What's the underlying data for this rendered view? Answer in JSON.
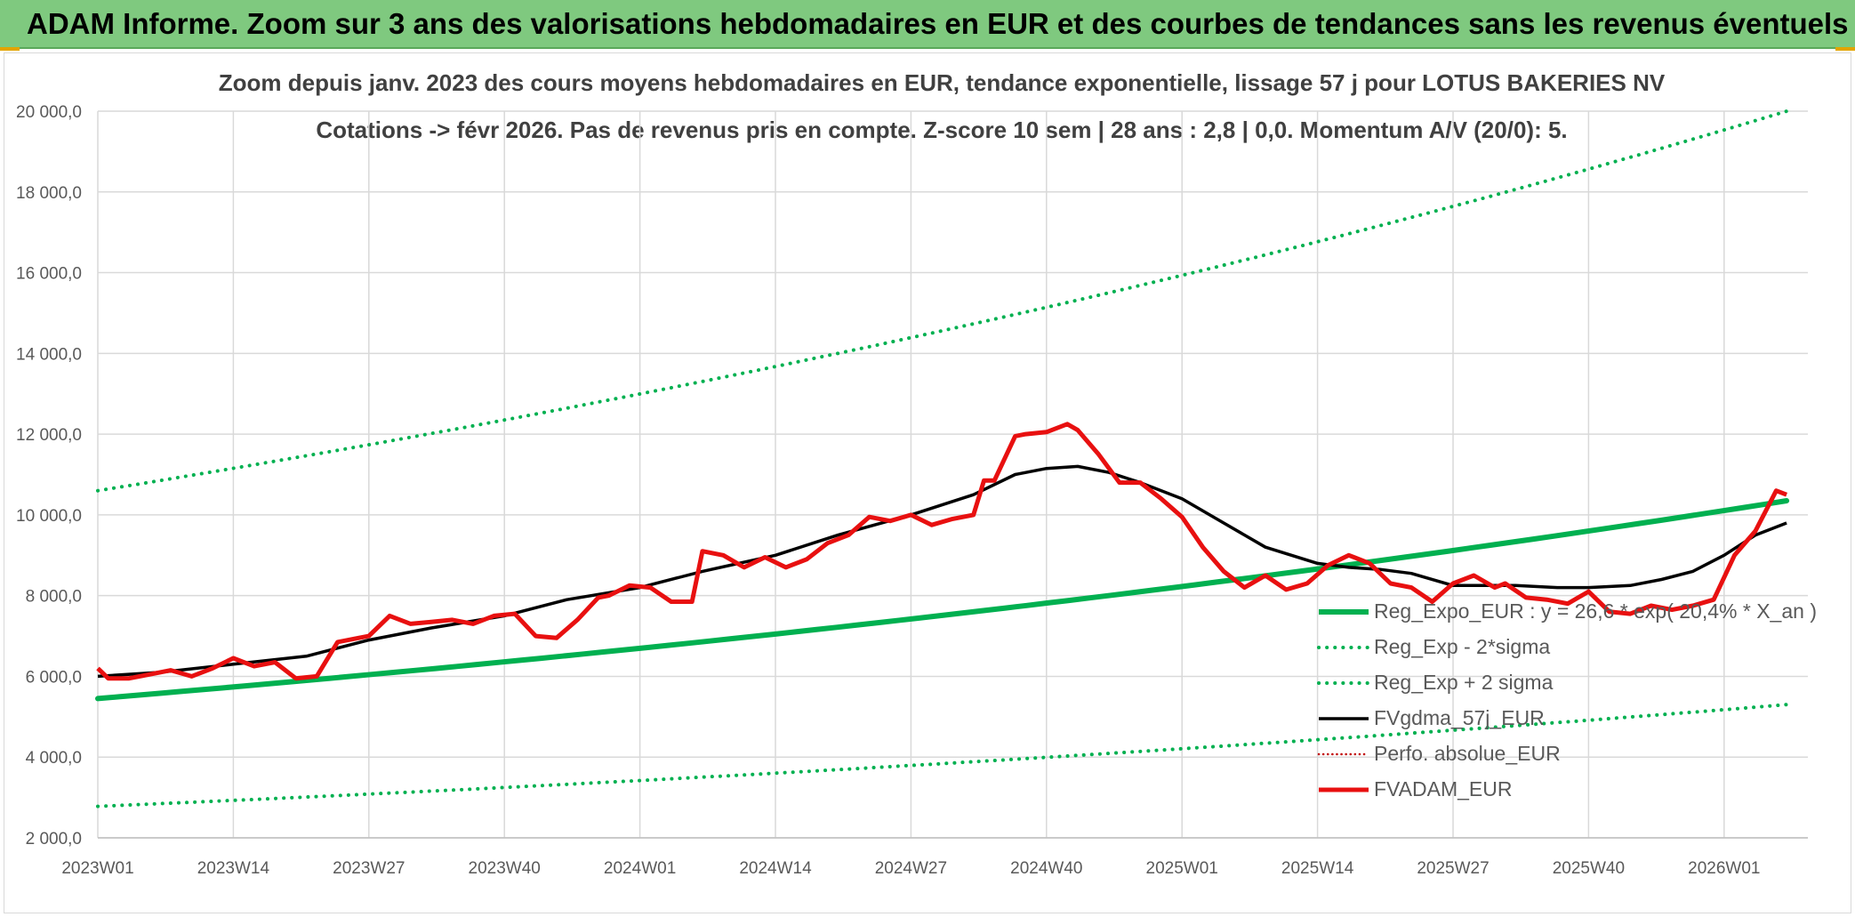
{
  "banner": {
    "title": "ADAM Informe. Zoom sur 3 ans des valorisations hebdomadaires en EUR et des courbes de tendances sans les revenus éventuels"
  },
  "colors": {
    "banner_bg": "#7fc97f",
    "trend_green": "#00b050",
    "band_green": "#00b050",
    "fvgdma_black": "#000000",
    "perfo_red": "#c00000",
    "fvadam_red": "#e81010"
  },
  "chart_data": {
    "type": "line",
    "title_line1": "Zoom depuis janv. 2023 des cours moyens hebdomadaires en EUR, tendance exponentielle, lissage 57 j pour LOTUS BAKERIES NV",
    "title_line2": "Cotations -> févr 2026. Pas de revenus pris en compte. Z-score 10 sem | 28 ans : 2,8 | 0,0. Momentum A/V (20/0): 5.",
    "ylim": [
      2000,
      20000
    ],
    "y_ticks": [
      2000,
      4000,
      6000,
      8000,
      10000,
      12000,
      14000,
      16000,
      18000,
      20000
    ],
    "y_tick_labels": [
      "2 000,0",
      "4 000,0",
      "6 000,0",
      "8 000,0",
      "10 000,0",
      "12 000,0",
      "14 000,0",
      "16 000,0",
      "18 000,0",
      "20 000,0"
    ],
    "x_range_weeks": [
      0,
      125
    ],
    "x_ticks": [
      0,
      13,
      26,
      39,
      52,
      65,
      78,
      91,
      104,
      117,
      130,
      143,
      156
    ],
    "x_tick_labels": [
      "2023W01",
      "2023W14",
      "2023W27",
      "2023W40",
      "2024W01",
      "2024W14",
      "2024W27",
      "2024W40",
      "2025W01",
      "2025W14",
      "2025W27",
      "2025W40",
      "2026W01"
    ],
    "legend": [
      "Reg_Expo_EUR : y = 26,6 * exp( 20,4% *  X_an )",
      "Reg_Exp - 2*sigma",
      "Reg_Exp + 2 sigma",
      "FVgdma_57j_EUR",
      "Perfo. absolue_EUR",
      "FVADAM_EUR"
    ],
    "series": [
      {
        "name": "Reg_Expo_EUR",
        "style": "solid-thick",
        "x": [
          0,
          162
        ],
        "y": [
          5450,
          10350
        ],
        "shape": "exp"
      },
      {
        "name": "Reg_Exp - 2*sigma",
        "style": "dotted",
        "x": [
          0,
          162
        ],
        "y": [
          2780,
          5300
        ],
        "shape": "exp"
      },
      {
        "name": "Reg_Exp + 2 sigma",
        "style": "dotted",
        "x": [
          0,
          162
        ],
        "y": [
          10600,
          20000
        ],
        "shape": "exp"
      },
      {
        "name": "FVgdma_57j_EUR",
        "style": "solid",
        "x": [
          0,
          6,
          13,
          20,
          26,
          32,
          39,
          45,
          52,
          58,
          65,
          71,
          78,
          84,
          88,
          91,
          94,
          97,
          100,
          104,
          108,
          112,
          117,
          120,
          123,
          126,
          130,
          133,
          136,
          140,
          143,
          147,
          150,
          153,
          156,
          159,
          162
        ],
        "y": [
          6000,
          6100,
          6300,
          6500,
          6900,
          7200,
          7500,
          7900,
          8200,
          8600,
          9000,
          9500,
          10000,
          10500,
          11000,
          11150,
          11200,
          11050,
          10800,
          10400,
          9800,
          9200,
          8800,
          8700,
          8650,
          8550,
          8250,
          8250,
          8250,
          8200,
          8200,
          8250,
          8400,
          8600,
          9000,
          9500,
          9800
        ]
      },
      {
        "name": "FVADAM_EUR",
        "style": "solid-thick",
        "x": [
          0,
          1,
          3,
          5,
          7,
          9,
          11,
          13,
          15,
          17,
          19,
          21,
          23,
          25,
          26,
          28,
          30,
          32,
          34,
          36,
          38,
          40,
          42,
          44,
          46,
          48,
          49,
          51,
          53,
          55,
          57,
          58,
          60,
          62,
          64,
          66,
          68,
          70,
          72,
          74,
          76,
          78,
          80,
          82,
          84,
          85,
          86,
          88,
          89,
          91,
          93,
          94,
          96,
          98,
          100,
          102,
          104,
          106,
          108,
          110,
          112,
          114,
          116,
          118,
          120,
          122,
          124,
          126,
          128,
          130,
          132,
          134,
          135,
          137,
          139,
          141,
          143,
          145,
          147,
          149,
          151,
          153,
          155,
          157,
          159,
          161,
          162
        ],
        "y": [
          6200,
          5950,
          5950,
          6050,
          6150,
          6000,
          6200,
          6450,
          6250,
          6350,
          5950,
          6000,
          6850,
          6950,
          7000,
          7500,
          7300,
          7350,
          7400,
          7300,
          7500,
          7550,
          7000,
          6950,
          7400,
          7950,
          8000,
          8250,
          8200,
          7850,
          7850,
          9100,
          9000,
          8700,
          8950,
          8700,
          8900,
          9300,
          9500,
          9950,
          9850,
          10000,
          9750,
          9900,
          10000,
          10850,
          10850,
          11950,
          12000,
          12050,
          12250,
          12100,
          11500,
          10800,
          10800,
          10400,
          9950,
          9200,
          8600,
          8200,
          8500,
          8150,
          8300,
          8750,
          9000,
          8800,
          8300,
          8200,
          7850,
          8300,
          8500,
          8200,
          8300,
          7950,
          7900,
          7800,
          8100,
          7600,
          7550,
          7750,
          7650,
          7750,
          7900,
          9000,
          9600,
          10600,
          10500
        ]
      }
    ]
  }
}
